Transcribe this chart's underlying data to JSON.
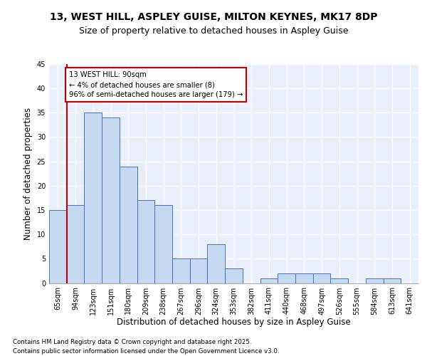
{
  "title1": "13, WEST HILL, ASPLEY GUISE, MILTON KEYNES, MK17 8DP",
  "title2": "Size of property relative to detached houses in Aspley Guise",
  "xlabel": "Distribution of detached houses by size in Aspley Guise",
  "ylabel": "Number of detached properties",
  "categories": [
    "65sqm",
    "94sqm",
    "123sqm",
    "151sqm",
    "180sqm",
    "209sqm",
    "238sqm",
    "267sqm",
    "296sqm",
    "324sqm",
    "353sqm",
    "382sqm",
    "411sqm",
    "440sqm",
    "468sqm",
    "497sqm",
    "526sqm",
    "555sqm",
    "584sqm",
    "613sqm",
    "641sqm"
  ],
  "values": [
    15,
    16,
    35,
    34,
    24,
    17,
    16,
    5,
    5,
    8,
    3,
    0,
    1,
    2,
    2,
    2,
    1,
    0,
    1,
    1,
    0
  ],
  "bar_color": "#c5d9f1",
  "bar_edge_color": "#4472c4",
  "vline_color": "#c00000",
  "annotation_title": "13 WEST HILL: 90sqm",
  "annotation_line1": "← 4% of detached houses are smaller (8)",
  "annotation_line2": "96% of semi-detached houses are larger (179) →",
  "annotation_box_color": "#c00000",
  "ylim": [
    0,
    45
  ],
  "yticks": [
    0,
    5,
    10,
    15,
    20,
    25,
    30,
    35,
    40,
    45
  ],
  "footer1": "Contains HM Land Registry data © Crown copyright and database right 2025.",
  "footer2": "Contains public sector information licensed under the Open Government Licence v3.0.",
  "bg_color": "#eaf0fb",
  "fig_bg_color": "#ffffff",
  "grid_color": "#ffffff",
  "title_fontsize": 10,
  "subtitle_fontsize": 9,
  "axis_fontsize": 8.5,
  "tick_fontsize": 7
}
